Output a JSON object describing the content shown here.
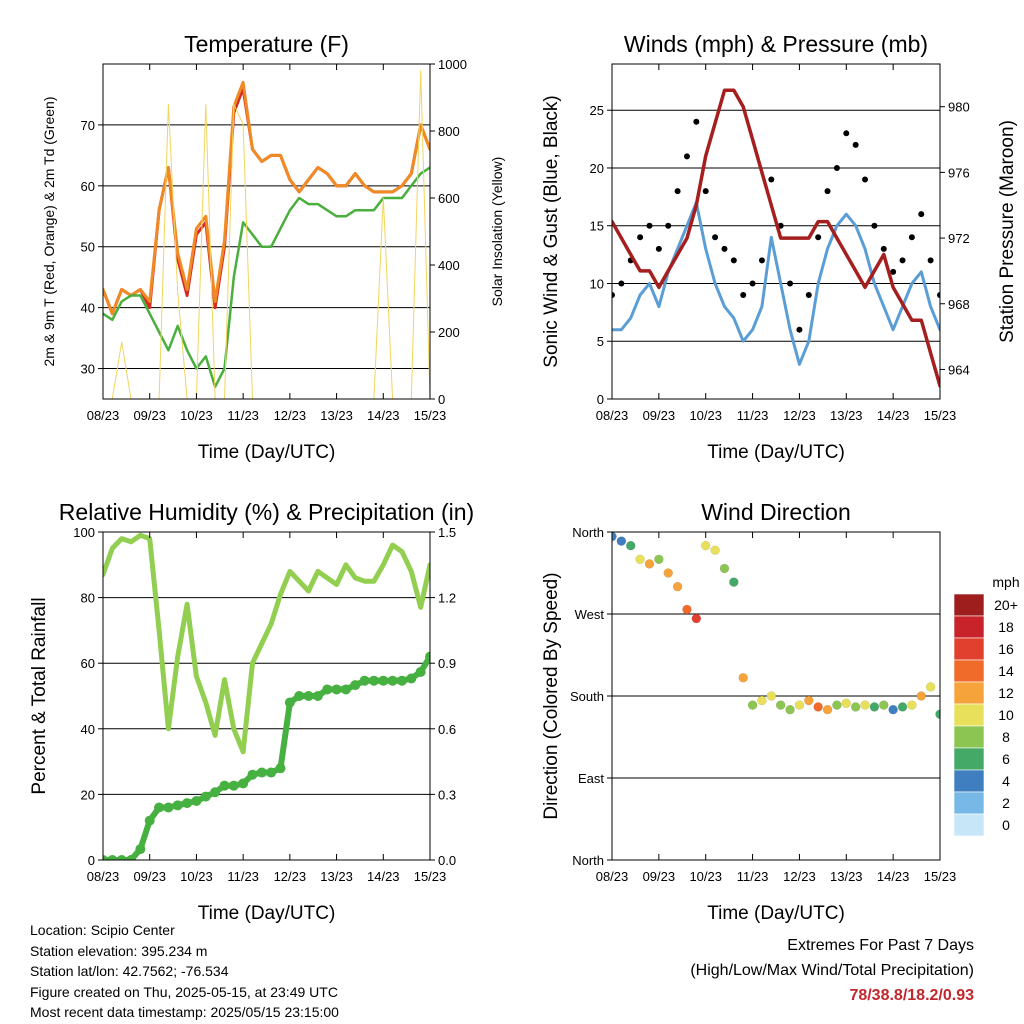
{
  "x_ticks": [
    "08/23",
    "09/23",
    "10/23",
    "11/23",
    "12/23",
    "13/23",
    "14/23",
    "15/23"
  ],
  "colors": {
    "red": "#d42a26",
    "orange": "#f08a24",
    "green_td": "#4aaf3c",
    "yellow": "#f2d55e",
    "maroon": "#a51f1f",
    "blue": "#5b9ed6",
    "black": "#000000",
    "rh": "#92cf50",
    "precip": "#46b040"
  },
  "chart_data": [
    {
      "id": "temperature",
      "type": "line",
      "title": "Temperature (F)",
      "xlabel": "Time (Day/UTC)",
      "ylabel": "2m & 9m T (Red, Orange) & 2m Td (Green)",
      "y2label": "Solar Insolation (Yellow)",
      "ylim": [
        25,
        80
      ],
      "yticks": [
        30,
        40,
        50,
        60,
        70
      ],
      "y2lim": [
        0,
        1000
      ],
      "y2ticks": [
        0,
        200,
        400,
        600,
        800,
        1000
      ],
      "x_day": [
        0,
        0.2,
        0.4,
        0.6,
        0.8,
        1.0,
        1.2,
        1.4,
        1.6,
        1.8,
        2.0,
        2.2,
        2.4,
        2.6,
        2.8,
        3.0,
        3.2,
        3.4,
        3.6,
        3.8,
        4.0,
        4.2,
        4.4,
        4.6,
        4.8,
        5.0,
        5.2,
        5.4,
        5.6,
        5.8,
        6.0,
        6.2,
        6.4,
        6.6,
        6.8,
        7.0
      ],
      "series": [
        {
          "name": "2m T",
          "axis": "y",
          "color": "red",
          "values": [
            43,
            39,
            43,
            42,
            43,
            40,
            56,
            63,
            48,
            42,
            52,
            54,
            40,
            50,
            72,
            76,
            66,
            64,
            65,
            65,
            61,
            59,
            61,
            63,
            62,
            60,
            60,
            62,
            60,
            59,
            59,
            59,
            60,
            62,
            70,
            66
          ]
        },
        {
          "name": "9m T",
          "axis": "y",
          "color": "orange",
          "values": [
            43,
            39,
            43,
            42,
            43,
            41,
            56,
            63,
            49,
            43,
            53,
            55,
            41,
            51,
            73,
            77,
            66,
            64,
            65,
            65,
            61,
            59,
            61,
            63,
            62,
            60,
            60,
            62,
            60,
            59,
            59,
            59,
            60,
            62,
            70,
            66
          ]
        },
        {
          "name": "2m Td",
          "axis": "y",
          "color": "green_td",
          "values": [
            39,
            38,
            41,
            42,
            42,
            39,
            36,
            33,
            37,
            33,
            30,
            32,
            27,
            30,
            45,
            54,
            52,
            50,
            50,
            53,
            56,
            58,
            57,
            57,
            56,
            55,
            55,
            56,
            56,
            56,
            58,
            58,
            58,
            60,
            62,
            63
          ]
        },
        {
          "name": "Solar Insolation",
          "axis": "y2",
          "color": "yellow",
          "values": [
            0,
            0,
            170,
            0,
            0,
            0,
            0,
            880,
            320,
            0,
            0,
            880,
            0,
            0,
            880,
            820,
            0,
            0,
            0,
            0,
            0,
            0,
            0,
            0,
            0,
            0,
            0,
            0,
            0,
            0,
            600,
            0,
            0,
            0,
            980,
            0
          ]
        }
      ]
    },
    {
      "id": "winds",
      "type": "line",
      "title": "Winds (mph) & Pressure (mb)",
      "xlabel": "Time (Day/UTC)",
      "ylabel": "Sonic Wind & Gust (Blue, Black)",
      "y2label": "Station Pressure (Maroon)",
      "ylim": [
        0,
        29
      ],
      "yticks": [
        0,
        5,
        10,
        15,
        20,
        25
      ],
      "y2lim": [
        962.2,
        982.6
      ],
      "y2ticks": [
        964,
        968,
        972,
        976,
        980
      ],
      "x_day": [
        0,
        0.2,
        0.4,
        0.6,
        0.8,
        1.0,
        1.2,
        1.4,
        1.6,
        1.8,
        2.0,
        2.2,
        2.4,
        2.6,
        2.8,
        3.0,
        3.2,
        3.4,
        3.6,
        3.8,
        4.0,
        4.2,
        4.4,
        4.6,
        4.8,
        5.0,
        5.2,
        5.4,
        5.6,
        5.8,
        6.0,
        6.2,
        6.4,
        6.6,
        6.8,
        7.0
      ],
      "series": [
        {
          "name": "Sonic Wind",
          "axis": "y",
          "color": "blue",
          "values": [
            6,
            6,
            7,
            9,
            10,
            8,
            11,
            13,
            15,
            17,
            13,
            10,
            8,
            7,
            5,
            6,
            8,
            14,
            10,
            6,
            3,
            5,
            10,
            13,
            15,
            16,
            15,
            13,
            10,
            8,
            6,
            8,
            10,
            11,
            8,
            6
          ]
        },
        {
          "name": "Gust",
          "axis": "y",
          "color": "black",
          "values": [
            9,
            10,
            12,
            14,
            15,
            13,
            15,
            18,
            21,
            24,
            18,
            14,
            13,
            12,
            9,
            10,
            12,
            19,
            15,
            10,
            6,
            9,
            14,
            18,
            20,
            23,
            22,
            19,
            15,
            13,
            11,
            12,
            14,
            16,
            12,
            9
          ]
        },
        {
          "name": "Station Pressure",
          "axis": "y2",
          "color": "maroon",
          "values": [
            973,
            972,
            971,
            970,
            970,
            969,
            970,
            971,
            972,
            974,
            977,
            979,
            981,
            981,
            980,
            978,
            976,
            974,
            972,
            972,
            972,
            972,
            973,
            973,
            972,
            971,
            970,
            969,
            970,
            971,
            969,
            968,
            967,
            967,
            965,
            963
          ]
        }
      ]
    },
    {
      "id": "humidity",
      "type": "line",
      "title": "Relative Humidity (%) & Precipitation (in)",
      "xlabel": "Time (Day/UTC)",
      "ylabel": "Percent & Total Rainfall",
      "ylim": [
        0,
        100
      ],
      "yticks": [
        0,
        20,
        40,
        60,
        80,
        100
      ],
      "y2lim": [
        0,
        1.5
      ],
      "y2ticks": [
        "0.0",
        "0.3",
        "0.6",
        "0.9",
        "1.2",
        "1.5"
      ],
      "x_day": [
        0,
        0.2,
        0.4,
        0.6,
        0.8,
        1.0,
        1.2,
        1.4,
        1.6,
        1.8,
        2.0,
        2.2,
        2.4,
        2.6,
        2.8,
        3.0,
        3.2,
        3.4,
        3.6,
        3.8,
        4.0,
        4.2,
        4.4,
        4.6,
        4.8,
        5.0,
        5.2,
        5.4,
        5.6,
        5.8,
        6.0,
        6.2,
        6.4,
        6.6,
        6.8,
        7.0
      ],
      "series": [
        {
          "name": "Relative Humidity",
          "axis": "y",
          "color": "rh",
          "values": [
            87,
            95,
            98,
            97,
            99,
            98,
            70,
            40,
            62,
            78,
            56,
            48,
            38,
            55,
            40,
            33,
            60,
            66,
            72,
            81,
            88,
            85,
            82,
            88,
            86,
            84,
            90,
            86,
            85,
            85,
            90,
            96,
            94,
            88,
            77,
            90
          ]
        },
        {
          "name": "Total Precipitation",
          "axis": "y2",
          "color": "precip",
          "values": [
            0,
            0,
            0,
            0,
            0.05,
            0.18,
            0.24,
            0.24,
            0.25,
            0.26,
            0.27,
            0.29,
            0.31,
            0.34,
            0.34,
            0.35,
            0.39,
            0.4,
            0.4,
            0.42,
            0.72,
            0.75,
            0.75,
            0.75,
            0.78,
            0.78,
            0.78,
            0.8,
            0.82,
            0.82,
            0.82,
            0.82,
            0.82,
            0.83,
            0.86,
            0.93
          ]
        }
      ]
    },
    {
      "id": "direction",
      "type": "scatter",
      "title": "Wind Direction",
      "xlabel": "Time (Day/UTC)",
      "ylabel": "Direction (Colored By Speed)",
      "ylim": [
        0,
        360
      ],
      "yticks": [
        {
          "value": 0,
          "label": "North"
        },
        {
          "value": 90,
          "label": "East"
        },
        {
          "value": 180,
          "label": "South"
        },
        {
          "value": 270,
          "label": "West"
        },
        {
          "value": 360,
          "label": "North"
        }
      ],
      "x_day": [
        0,
        0.2,
        0.4,
        0.6,
        0.8,
        1.0,
        1.2,
        1.4,
        1.6,
        1.8,
        2.0,
        2.2,
        2.4,
        2.6,
        2.8,
        3.0,
        3.2,
        3.4,
        3.6,
        3.8,
        4.0,
        4.2,
        4.4,
        4.6,
        4.8,
        5.0,
        5.2,
        5.4,
        5.6,
        5.8,
        6.0,
        6.2,
        6.4,
        6.6,
        6.8,
        7.0
      ],
      "series": [
        {
          "name": "Wind Direction",
          "values": [
            355,
            350,
            345,
            330,
            325,
            330,
            315,
            300,
            275,
            265,
            345,
            340,
            320,
            305,
            200,
            170,
            175,
            180,
            170,
            165,
            170,
            175,
            168,
            165,
            170,
            172,
            168,
            170,
            168,
            170,
            165,
            168,
            170,
            180,
            190,
            160
          ]
        }
      ],
      "speed": [
        4,
        5,
        7,
        10,
        12,
        9,
        12,
        13,
        15,
        17,
        10,
        11,
        8,
        6,
        12,
        8,
        10,
        11,
        9,
        8,
        10,
        13,
        14,
        12,
        8,
        10,
        9,
        11,
        6,
        8,
        5,
        6,
        10,
        13,
        11,
        6
      ],
      "colorbar": {
        "title": "mph",
        "labels": [
          "20+",
          "18",
          "16",
          "14",
          "12",
          "10",
          "8",
          "6",
          "4",
          "2",
          "0"
        ],
        "colors": [
          "#9e1e1e",
          "#c8222a",
          "#e2402e",
          "#f06a2a",
          "#f7a33c",
          "#e8e05a",
          "#8cc552",
          "#44a866",
          "#3f7fc0",
          "#78b8e6",
          "#c7e6f8"
        ]
      }
    }
  ],
  "station": {
    "location": "Location: Scipio Center",
    "elevation": "Station elevation: 395.234 m",
    "latlon": "Station lat/lon: 42.7562; -76.534",
    "created": "Figure created on Thu, 2025-05-15, at 23:49 UTC",
    "recent": "Most recent data timestamp: 2025/05/15 23:15:00"
  },
  "extremes": {
    "title": "Extremes For Past 7 Days",
    "subtitle": "(High/Low/Max Wind/Total Precipitation)",
    "values": "78/38.8/18.2/0.93"
  }
}
